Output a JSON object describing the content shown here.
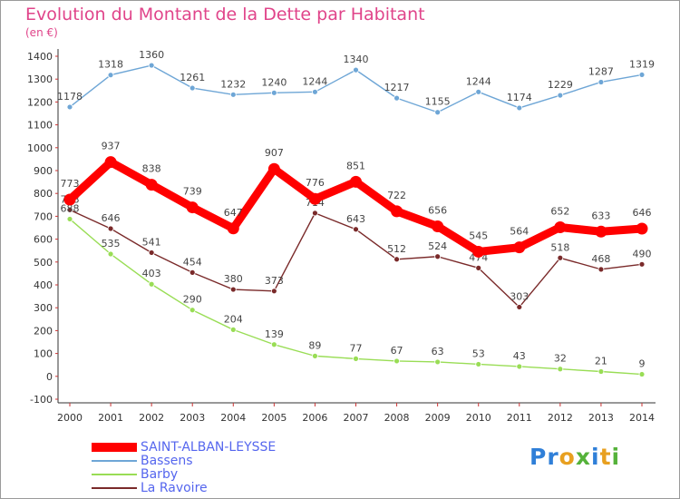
{
  "header": {
    "title": "Evolution du Montant de la Dette par Habitant",
    "unit": "(en €)"
  },
  "logo": {
    "text": "Proxiti"
  },
  "chart_data": {
    "type": "line",
    "title": "Evolution du Montant de la Dette par Habitant",
    "subtitle": "(en €)",
    "xlabel": "",
    "ylabel": "",
    "ylim": [
      -100,
      1400
    ],
    "ytick_step": 100,
    "grid": false,
    "legend_position": "bottom-left",
    "x": [
      "2000",
      "2001",
      "2002",
      "2003",
      "2004",
      "2005",
      "2006",
      "2007",
      "2008",
      "2009",
      "2010",
      "2011",
      "2012",
      "2013",
      "2014"
    ],
    "series": [
      {
        "name": "Bassens",
        "color": "#6ea6d6",
        "values": [
          1178,
          1318,
          1360,
          1261,
          1232,
          1240,
          1244,
          1340,
          1217,
          1155,
          1244,
          1174,
          1229,
          1287,
          1319
        ]
      },
      {
        "name": "La Ravoire",
        "color": "#7a2a2a",
        "values": [
          728,
          646,
          541,
          454,
          380,
          373,
          714,
          643,
          512,
          524,
          474,
          303,
          518,
          468,
          490
        ]
      },
      {
        "name": "Barby",
        "color": "#99dd55",
        "values": [
          688,
          535,
          403,
          290,
          204,
          139,
          89,
          77,
          67,
          63,
          53,
          43,
          32,
          21,
          9
        ]
      },
      {
        "name": "SAINT-ALBAN-LEYSSE",
        "color": "#ff0000",
        "values": [
          773,
          937,
          838,
          739,
          647,
          907,
          776,
          851,
          722,
          656,
          545,
          564,
          652,
          633,
          646
        ]
      }
    ],
    "legend_order": [
      "SAINT-ALBAN-LEYSSE",
      "Bassens",
      "Barby",
      "La Ravoire"
    ]
  }
}
